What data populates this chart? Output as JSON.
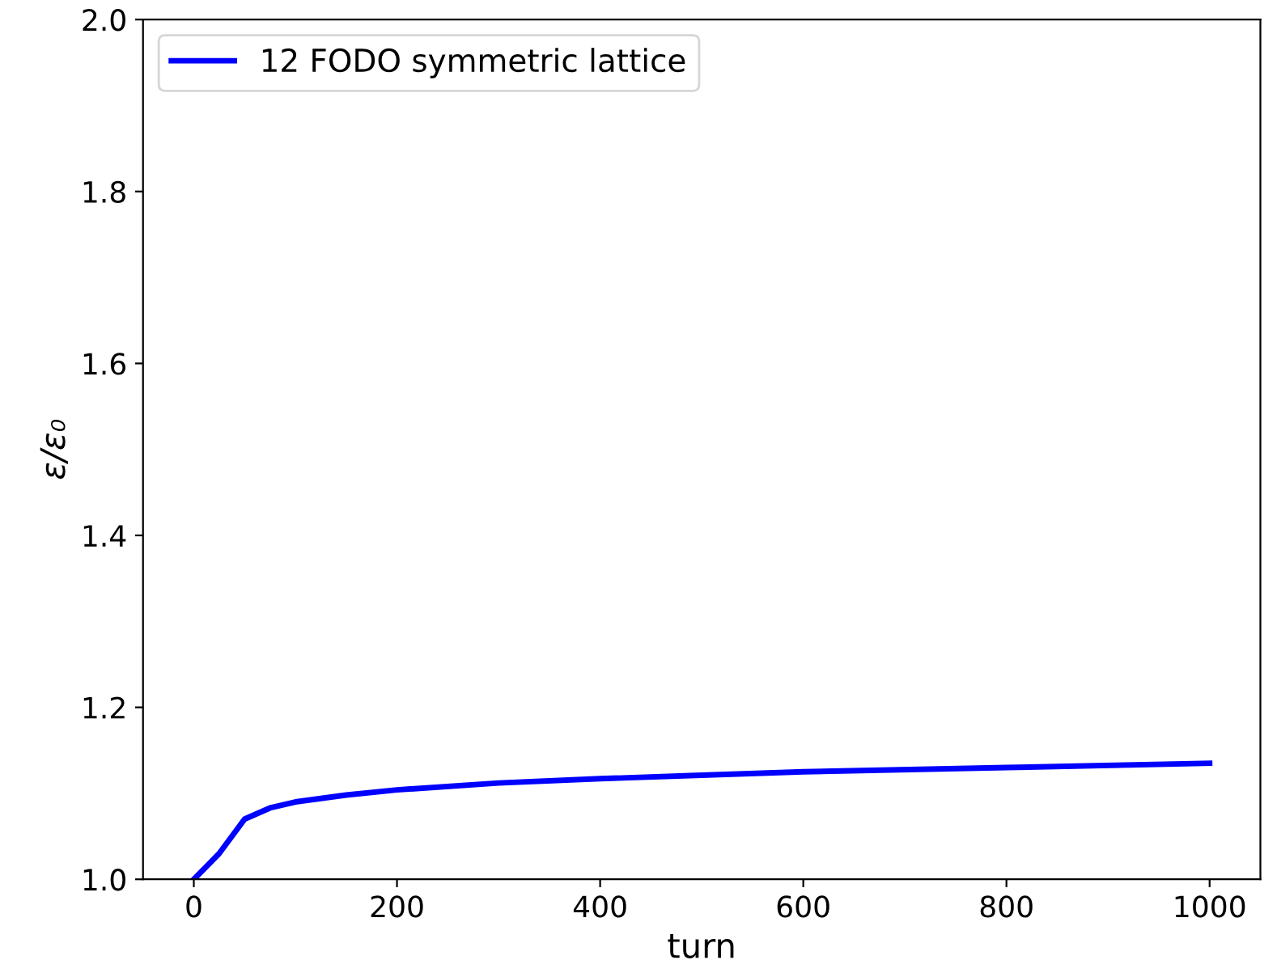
{
  "chart_data": {
    "type": "line",
    "xlabel": "turn",
    "ylabel": "ε/ε₀",
    "x": [
      0,
      25,
      50,
      75,
      100,
      150,
      200,
      300,
      400,
      500,
      600,
      800,
      1000
    ],
    "series": [
      {
        "name": "12 FODO symmetric lattice",
        "color": "#0000ff",
        "values": [
          1.0,
          1.03,
          1.07,
          1.083,
          1.09,
          1.098,
          1.104,
          1.112,
          1.117,
          1.121,
          1.125,
          1.13,
          1.135
        ]
      }
    ],
    "xlim": [
      -50,
      1050
    ],
    "xticks": [
      0,
      200,
      400,
      600,
      800,
      1000
    ],
    "ylim": [
      1.0,
      2.0
    ],
    "yticks": [
      {
        "value": 1.0,
        "label": "1.0"
      },
      {
        "value": 1.2,
        "label": "1.2"
      },
      {
        "value": 1.4,
        "label": "1.4"
      },
      {
        "value": 1.6,
        "label": "1.6"
      },
      {
        "value": 1.8,
        "label": "1.8"
      },
      {
        "value": 2.0,
        "label": "2.0"
      }
    ],
    "legend": "top left",
    "grid": false
  }
}
